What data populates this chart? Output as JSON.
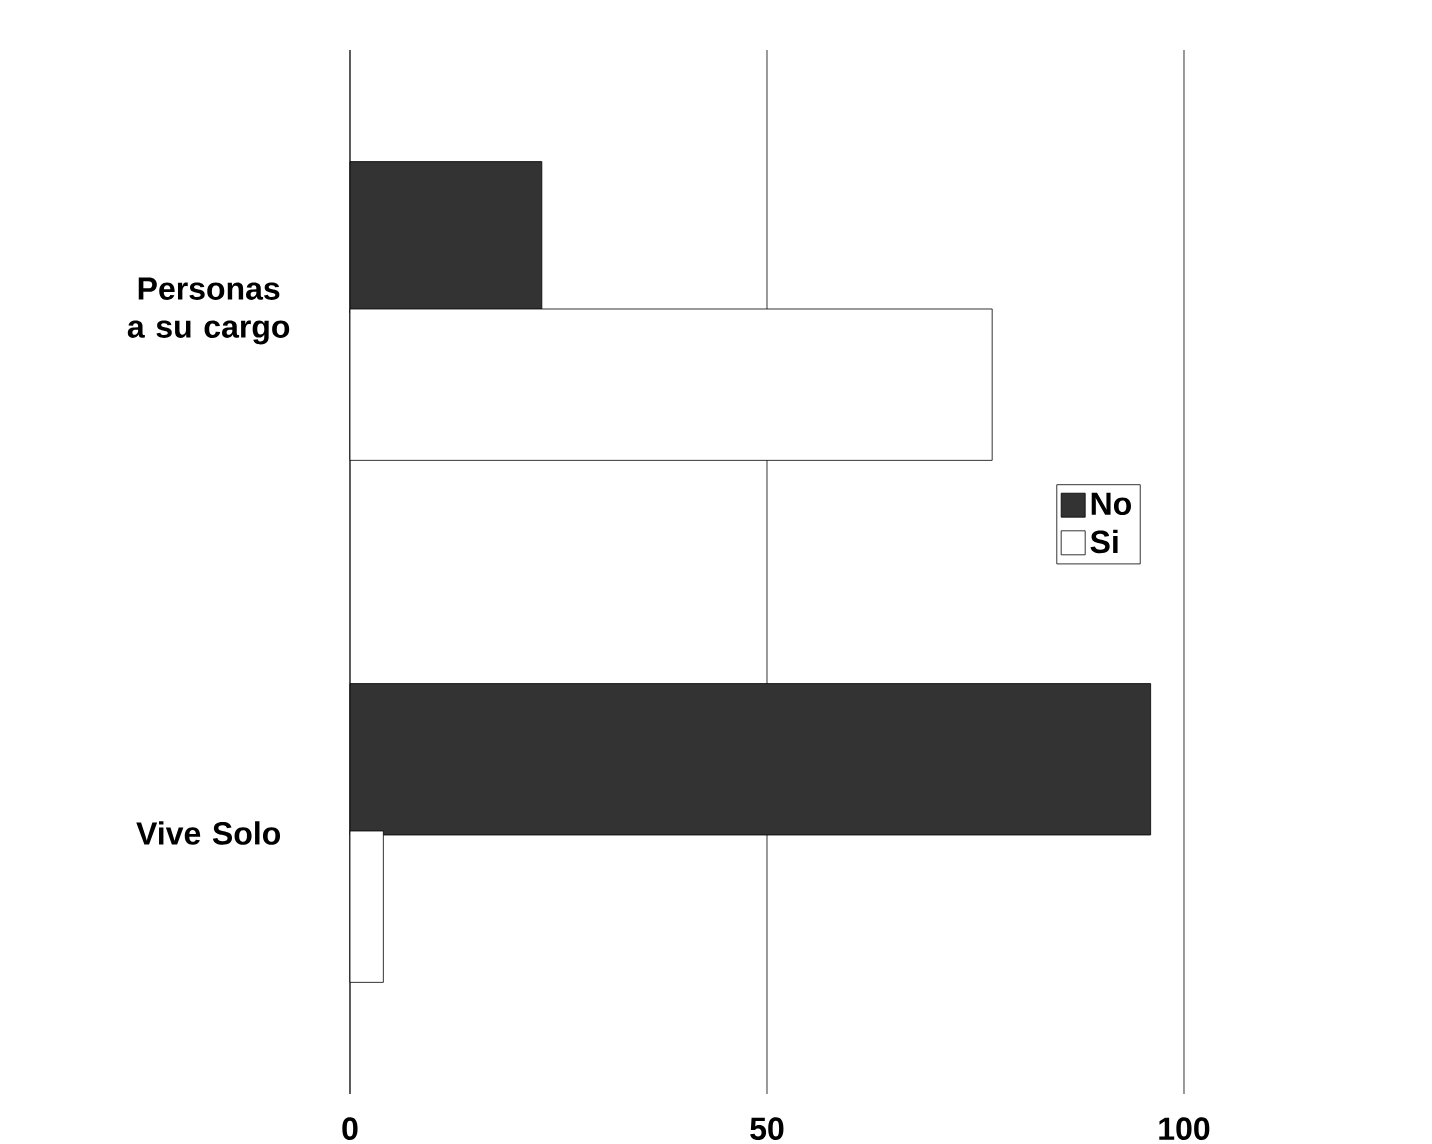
{
  "chart_data": {
    "type": "bar",
    "orientation": "horizontal",
    "categories": [
      "Personas a su cargo",
      "Vive Solo"
    ],
    "series": [
      {
        "name": "No",
        "color": "#333333",
        "values": [
          23,
          96
        ]
      },
      {
        "name": "Si",
        "color": "#ffffff",
        "values": [
          77,
          4
        ]
      }
    ],
    "xlim": [
      0,
      100
    ],
    "xticks": [
      0,
      50,
      100
    ],
    "grid": "x",
    "legend": "right"
  }
}
